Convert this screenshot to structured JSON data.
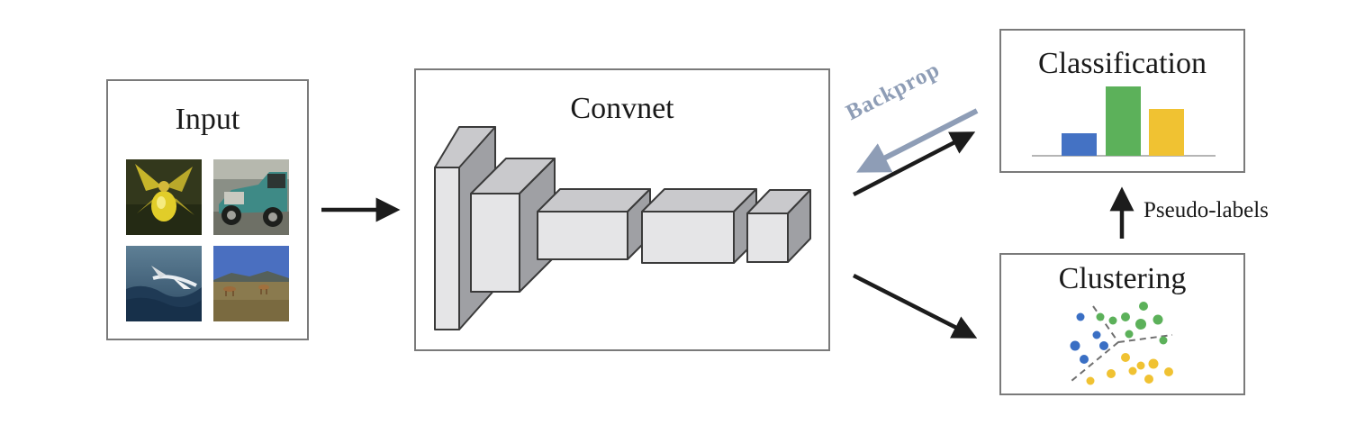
{
  "input": {
    "title": "Input"
  },
  "convnet": {
    "title": "Convnet"
  },
  "classification": {
    "title": "Classification",
    "bar_colors": [
      "#4472c4",
      "#5cb15a",
      "#f0c232"
    ],
    "bar_levels": [
      0.32,
      1.0,
      0.67
    ]
  },
  "clustering": {
    "title": "Clustering",
    "cluster_colors": [
      "#3a6fc4",
      "#5cb15a",
      "#f0c232"
    ]
  },
  "arrows": {
    "backprop_label": "Backprop",
    "pseudo_labels": "Pseudo-labels",
    "backprop_color": "#8e9db6"
  },
  "thumbnails": [
    "orchid-flower-photo",
    "vintage-car-photo",
    "seabird-over-waves-photo",
    "antelopes-in-field-photo"
  ]
}
